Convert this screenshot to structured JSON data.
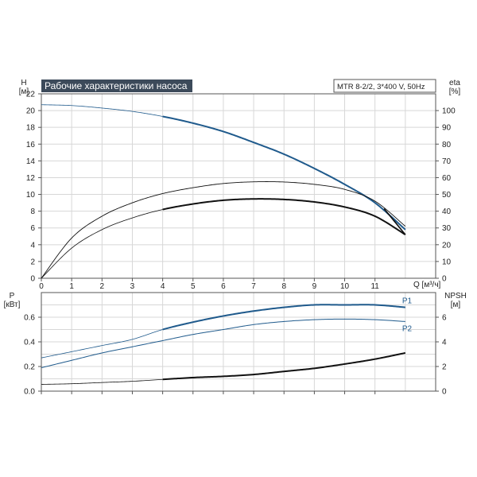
{
  "title_badge": "Рабочие характеристики насоса",
  "model_label": "MTR 8-2/2, 3*400 V, 50Hz",
  "colors": {
    "background": "#ffffff",
    "grid": "#d7d7d7",
    "frame": "#555555",
    "title_bg": "#3c4a5a",
    "blue": "#1f5a8c",
    "black": "#111111"
  },
  "chart_data": [
    {
      "type": "line",
      "name": "upper",
      "xlabel": "Q [м³/ч]",
      "ylabel_left": "H\n[м]",
      "ylabel_right": "eta\n[%]",
      "xlim": [
        0,
        13
      ],
      "ylim": [
        0,
        22
      ],
      "ylim_right": [
        0,
        110
      ],
      "x_ticks": [
        0,
        1,
        2,
        3,
        4,
        5,
        6,
        7,
        8,
        9,
        10,
        11
      ],
      "y_ticks_left": [
        0,
        2,
        4,
        6,
        8,
        10,
        12,
        14,
        16,
        18,
        20,
        22
      ],
      "y_ticks_right": [
        0,
        10,
        20,
        30,
        40,
        50,
        60,
        70,
        80,
        90,
        100
      ],
      "grid": true,
      "series": [
        {
          "role": "head",
          "axis": "left",
          "color": "blue",
          "x": [
            0,
            1,
            2,
            3,
            4,
            5,
            6,
            7,
            8,
            9,
            10,
            11,
            12
          ],
          "y": [
            20.7,
            20.6,
            20.3,
            19.9,
            19.3,
            18.5,
            17.5,
            16.2,
            14.8,
            13.1,
            11.2,
            9.0,
            5.8
          ]
        },
        {
          "role": "eta_thin",
          "axis": "right",
          "color": "black",
          "x": [
            0,
            1,
            2,
            3,
            4,
            5,
            6,
            7,
            8,
            9,
            10,
            11,
            12
          ],
          "y": [
            0,
            24,
            37,
            45,
            50.5,
            54,
            56.5,
            57.5,
            57.4,
            56,
            53,
            46,
            31
          ]
        },
        {
          "role": "eta_thick",
          "axis": "right",
          "color": "black",
          "x": [
            0,
            1,
            2,
            3,
            4,
            5,
            6,
            7,
            8,
            9,
            10,
            11,
            12
          ],
          "y": [
            0,
            18,
            29,
            36,
            41,
            44.3,
            46.5,
            47.3,
            47.0,
            45.5,
            42.5,
            37,
            26
          ]
        },
        {
          "role": "head_thin",
          "axis": "left",
          "color": "black",
          "x": [
            11.3,
            12
          ],
          "y": [
            8.3,
            5.2
          ]
        }
      ]
    },
    {
      "type": "line",
      "name": "lower",
      "ylabel_left": "P\n[кВт]",
      "ylabel_right": "NPSH\n[м]",
      "xlim": [
        0,
        13
      ],
      "ylim": [
        0,
        0.8
      ],
      "ylim_right": [
        0,
        8
      ],
      "x_ticks": [
        0,
        1,
        2,
        3,
        4,
        5,
        6,
        7,
        8,
        9,
        10,
        11
      ],
      "y_ticks_left": [
        "0.0",
        "0.2",
        "0.4",
        "0.6"
      ],
      "y_ticks_right": [
        0,
        2,
        4,
        6
      ],
      "grid": true,
      "series": [
        {
          "name": "P1",
          "axis": "left",
          "color": "blue",
          "x": [
            0,
            1,
            2,
            3,
            4,
            5,
            6,
            7,
            8,
            9,
            10,
            11,
            12
          ],
          "y": [
            0.27,
            0.32,
            0.37,
            0.42,
            0.5,
            0.56,
            0.61,
            0.65,
            0.68,
            0.7,
            0.7,
            0.7,
            0.68
          ]
        },
        {
          "name": "P2",
          "axis": "left",
          "color": "blue",
          "x": [
            0,
            1,
            2,
            3,
            4,
            5,
            6,
            7,
            8,
            9,
            10,
            11,
            12
          ],
          "y": [
            0.19,
            0.25,
            0.31,
            0.36,
            0.41,
            0.46,
            0.5,
            0.54,
            0.565,
            0.58,
            0.585,
            0.58,
            0.565
          ]
        },
        {
          "role": "npsh",
          "axis": "right",
          "color": "black",
          "x": [
            0,
            1,
            2,
            3,
            4,
            5,
            6,
            7,
            8,
            9,
            10,
            11,
            12
          ],
          "y": [
            0.55,
            0.6,
            0.7,
            0.8,
            0.95,
            1.1,
            1.2,
            1.35,
            1.6,
            1.85,
            2.2,
            2.6,
            3.1
          ]
        }
      ]
    }
  ]
}
